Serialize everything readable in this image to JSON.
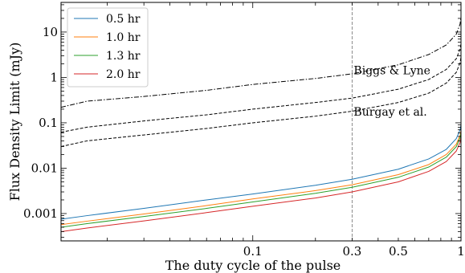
{
  "chart_data": {
    "type": "line",
    "xlabel": "The duty cycle of the pulse",
    "ylabel": "Flux Density Limit (mJy)",
    "xscale": "log",
    "yscale": "log",
    "xlim": [
      0.012,
      1.0
    ],
    "ylim": [
      0.00025,
      45
    ],
    "xticks": [
      {
        "value": 0.1,
        "label": "0.1"
      },
      {
        "value": 0.3,
        "label": "0.3"
      },
      {
        "value": 0.5,
        "label": "0.5"
      },
      {
        "value": 1,
        "label": "1"
      }
    ],
    "yticks": [
      {
        "value": 0.001,
        "label": "0.001"
      },
      {
        "value": 0.01,
        "label": "0.01"
      },
      {
        "value": 0.1,
        "label": "0.1"
      },
      {
        "value": 1,
        "label": "1"
      },
      {
        "value": 10,
        "label": "10"
      }
    ],
    "legend_position": "top-left",
    "series": [
      {
        "name": "0.5 hr",
        "color": "#1f77b4",
        "style": "solid",
        "x": [
          0.012,
          0.016,
          0.03,
          0.06,
          0.1,
          0.2,
          0.3,
          0.5,
          0.7,
          0.85,
          0.95,
          0.99,
          1.0
        ],
        "y": [
          0.00075,
          0.0009,
          0.0013,
          0.002,
          0.0027,
          0.0042,
          0.0057,
          0.0095,
          0.016,
          0.026,
          0.045,
          0.07,
          0.09
        ]
      },
      {
        "name": "1.0 hr",
        "color": "#ff7f0e",
        "style": "solid",
        "x": [
          0.012,
          0.016,
          0.03,
          0.06,
          0.1,
          0.2,
          0.3,
          0.5,
          0.7,
          0.85,
          0.95,
          0.99,
          1.0
        ],
        "y": [
          0.00057,
          0.00068,
          0.00098,
          0.0015,
          0.0021,
          0.0032,
          0.0043,
          0.0072,
          0.012,
          0.02,
          0.034,
          0.053,
          0.068
        ]
      },
      {
        "name": "1.3 hr",
        "color": "#2ca02c",
        "style": "solid",
        "x": [
          0.012,
          0.016,
          0.03,
          0.06,
          0.1,
          0.2,
          0.3,
          0.5,
          0.7,
          0.85,
          0.95,
          0.99,
          1.0
        ],
        "y": [
          0.0005,
          0.0006,
          0.00086,
          0.0013,
          0.0018,
          0.0028,
          0.0038,
          0.0063,
          0.0106,
          0.0175,
          0.03,
          0.046,
          0.06
        ]
      },
      {
        "name": "2.0 hr",
        "color": "#d62728",
        "style": "solid",
        "x": [
          0.012,
          0.016,
          0.03,
          0.06,
          0.1,
          0.2,
          0.3,
          0.5,
          0.7,
          0.85,
          0.95,
          0.99,
          1.0
        ],
        "y": [
          0.0004,
          0.00048,
          0.00069,
          0.00105,
          0.00145,
          0.0022,
          0.003,
          0.005,
          0.0085,
          0.014,
          0.024,
          0.037,
          0.048
        ]
      },
      {
        "name": "",
        "color": "#000000",
        "style": "dashdot",
        "x": [
          0.012,
          0.016,
          0.03,
          0.06,
          0.1,
          0.2,
          0.3,
          0.5,
          0.7,
          0.85,
          0.95,
          0.99,
          1.0
        ],
        "y": [
          0.22,
          0.3,
          0.38,
          0.52,
          0.7,
          0.95,
          1.2,
          1.9,
          3.2,
          5.2,
          9,
          15,
          22
        ]
      },
      {
        "name": "",
        "color": "#000000",
        "style": "dashed",
        "x": [
          0.012,
          0.016,
          0.03,
          0.06,
          0.1,
          0.2,
          0.3,
          0.5,
          0.7,
          0.85,
          0.95,
          0.99,
          1.0
        ],
        "y": [
          0.062,
          0.08,
          0.11,
          0.15,
          0.2,
          0.28,
          0.35,
          0.55,
          0.9,
          1.5,
          2.6,
          4.2,
          5.5
        ]
      },
      {
        "name": "",
        "color": "#000000",
        "style": "dashed",
        "x": [
          0.012,
          0.016,
          0.03,
          0.06,
          0.1,
          0.2,
          0.3,
          0.5,
          0.7,
          0.85,
          0.95,
          0.99,
          1.0
        ],
        "y": [
          0.03,
          0.04,
          0.054,
          0.075,
          0.1,
          0.14,
          0.18,
          0.28,
          0.45,
          0.75,
          1.3,
          2.1,
          2.8
        ]
      }
    ],
    "vline": {
      "x": 0.3,
      "color": "#808080",
      "style": "dashed"
    },
    "annotations": [
      {
        "text": "Biggs & Lyne",
        "x": 0.3,
        "y": 1.45
      },
      {
        "text": "Burgay et al.",
        "x": 0.3,
        "y": 0.175
      }
    ]
  }
}
